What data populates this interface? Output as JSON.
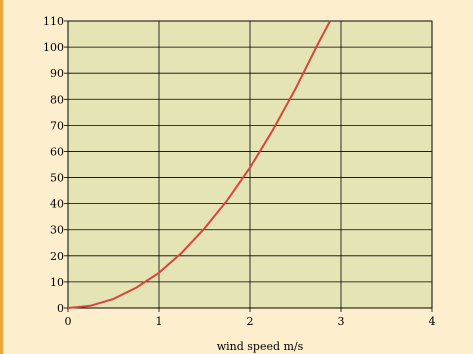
{
  "chart_data": {
    "type": "line",
    "title": "",
    "xlabel": "wind speed  m/s",
    "ylabel": "",
    "xlim": [
      0,
      4
    ],
    "ylim": [
      0,
      110
    ],
    "x_ticks": [
      "0",
      "1",
      "2",
      "3",
      "4"
    ],
    "y_ticks": [
      "0",
      "10",
      "20",
      "30",
      "40",
      "50",
      "60",
      "70",
      "80",
      "90",
      "100",
      "110"
    ],
    "grid": true,
    "legend": "none",
    "series": [
      {
        "x": [
          0,
          0.25,
          0.5,
          0.75,
          1.0,
          1.25,
          1.5,
          1.75,
          2.0,
          2.25,
          2.5,
          2.75,
          2.88
        ],
        "y": [
          0,
          0.9,
          3.5,
          7.8,
          13.5,
          21.2,
          30.5,
          41.3,
          53.8,
          68.2,
          84.0,
          101.5,
          110
        ],
        "color": "#d9443c"
      }
    ],
    "colors": {
      "plot_bg": "#e4e4b4",
      "grid": "#000000",
      "page_bg": "#fdeecd",
      "accent": "#f2a533"
    }
  }
}
